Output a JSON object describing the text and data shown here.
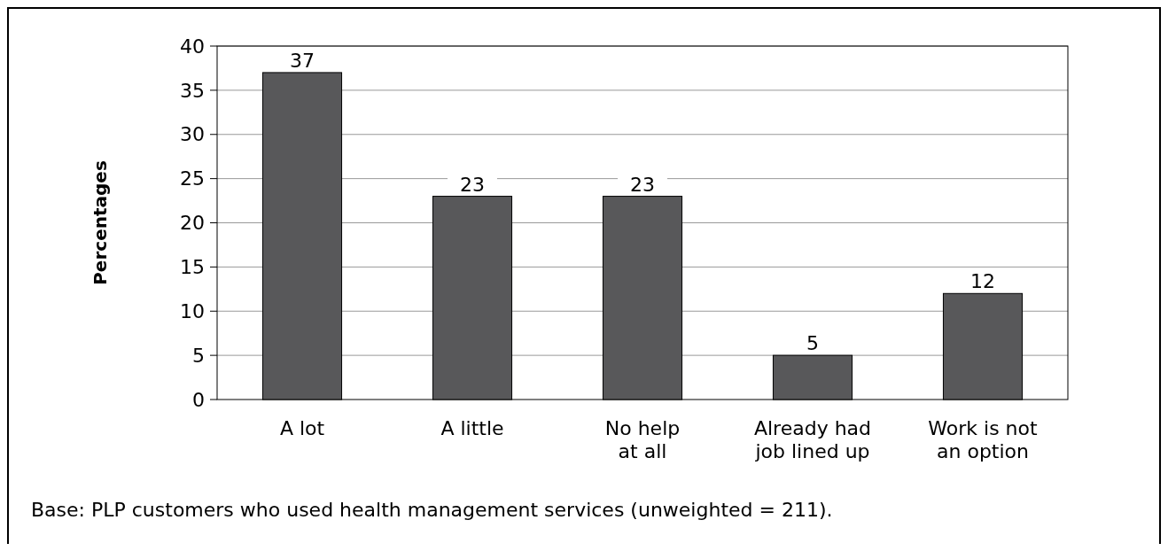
{
  "chart_data": {
    "type": "bar",
    "ylabel": "Percentages",
    "categories": [
      "A lot",
      "A little",
      "No help\nat all",
      "Already had\njob lined up",
      "Work is not\nan option"
    ],
    "values": [
      37,
      23,
      23,
      5,
      12
    ],
    "color": "#58585a",
    "ylim": [
      0,
      40
    ],
    "yticks": [
      0,
      5,
      10,
      15,
      20,
      25,
      30,
      35,
      40
    ],
    "grid": "y",
    "data_labels": true,
    "annotations": [
      "Base: PLP customers who used health management services (unweighted = 211)."
    ]
  }
}
